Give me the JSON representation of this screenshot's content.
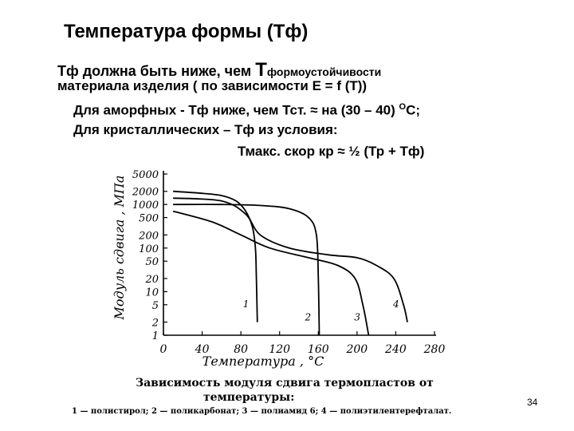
{
  "slide": {
    "title": "Температура формы (Тф)",
    "line1_a": "Тф должна быть ниже, чем ",
    "line1_T": "Т",
    "line1_b": "формоустойчивости",
    "line2": "материала изделия  ( по зависимости Е = f (T))",
    "line3_a": "Для аморфных - Тф ниже, чем Тст. ≈ на (30 – 40) ",
    "line3_sup": "О",
    "line3_b": "С;",
    "line4": "Для кристаллических – Тф из условия:",
    "line5": "Тмакс. скор кр ≈ ½ (Тр + Тф)",
    "page_number": "34"
  },
  "caption": {
    "line1": "Зависимость модуля сдвига термопластов от",
    "line2": "температуры:",
    "line3": "1 — полистирол; 2 — поликарбонат; 3 — полиамид 6; 4 — полиэтилентерефталат."
  },
  "chart_data": {
    "type": "line",
    "xlabel": "Температура , °С",
    "ylabel": "Модуль сдвига , МПа",
    "x_ticks": [
      "0",
      "40",
      "80",
      "120",
      "160",
      "200",
      "240",
      "280"
    ],
    "x_tick_values": [
      0,
      40,
      80,
      120,
      160,
      200,
      240,
      280
    ],
    "y_ticks": [
      "5000",
      "2000",
      "1000",
      "500",
      "200",
      "100",
      "50",
      "20",
      "10",
      "5",
      "2",
      "1"
    ],
    "y_tick_values": [
      5000,
      2000,
      1000,
      500,
      200,
      100,
      50,
      20,
      10,
      5,
      2,
      1
    ],
    "xlim": [
      0,
      280
    ],
    "ylim": [
      1,
      5000
    ],
    "y_scale": "log",
    "grid": false,
    "series": [
      {
        "name": "1",
        "points": [
          [
            10,
            2000
          ],
          [
            40,
            1800
          ],
          [
            60,
            1600
          ],
          [
            75,
            1200
          ],
          [
            85,
            700
          ],
          [
            92,
            300
          ],
          [
            95,
            100
          ],
          [
            96,
            20
          ],
          [
            97,
            2
          ]
        ]
      },
      {
        "name": "2",
        "points": [
          [
            10,
            1000
          ],
          [
            60,
            1000
          ],
          [
            100,
            950
          ],
          [
            130,
            800
          ],
          [
            150,
            500
          ],
          [
            158,
            200
          ],
          [
            160,
            20
          ],
          [
            161,
            1
          ]
        ]
      },
      {
        "name": "3",
        "points": [
          [
            10,
            700
          ],
          [
            50,
            400
          ],
          [
            80,
            200
          ],
          [
            110,
            100
          ],
          [
            150,
            60
          ],
          [
            180,
            40
          ],
          [
            198,
            20
          ],
          [
            206,
            5
          ],
          [
            212,
            1
          ]
        ]
      },
      {
        "name": "4",
        "points": [
          [
            10,
            1400
          ],
          [
            60,
            1200
          ],
          [
            85,
            600
          ],
          [
            100,
            200
          ],
          [
            130,
            100
          ],
          [
            170,
            70
          ],
          [
            200,
            60
          ],
          [
            220,
            40
          ],
          [
            238,
            20
          ],
          [
            248,
            5
          ],
          [
            252,
            2
          ]
        ]
      }
    ]
  }
}
